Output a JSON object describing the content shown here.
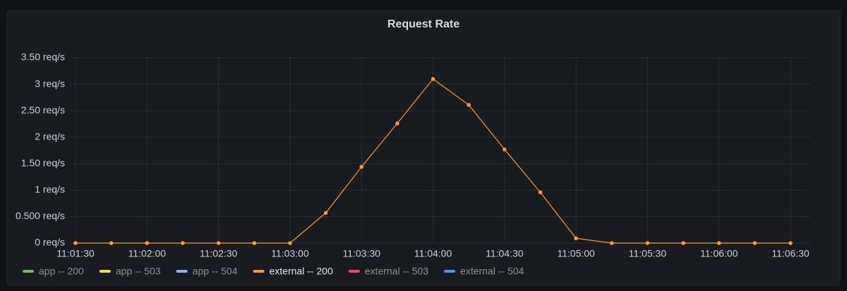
{
  "chart_data": {
    "type": "line",
    "title": "Request Rate",
    "x": [
      "11:01:30",
      "11:01:45",
      "11:02:00",
      "11:02:15",
      "11:02:30",
      "11:02:45",
      "11:03:00",
      "11:03:15",
      "11:03:30",
      "11:03:45",
      "11:04:00",
      "11:04:15",
      "11:04:30",
      "11:04:45",
      "11:05:00",
      "11:05:15",
      "11:05:30",
      "11:05:45",
      "11:06:00",
      "11:06:15",
      "11:06:30"
    ],
    "series": [
      {
        "name": "app -- 200",
        "color": "#73bf69"
      },
      {
        "name": "app -- 503",
        "color": "#fade2a"
      },
      {
        "name": "app -- 504",
        "color": "#8ab8ff"
      },
      {
        "name": "external -- 200",
        "color": "#ff9830",
        "values": [
          0,
          0,
          0,
          0,
          0,
          0,
          0,
          0.57,
          1.44,
          2.26,
          3.1,
          2.61,
          1.77,
          0.96,
          0.09,
          0,
          0,
          0,
          0,
          0,
          0
        ]
      },
      {
        "name": "external -- 503",
        "color": "#f2495c"
      },
      {
        "name": "external -- 504",
        "color": "#5794f2"
      }
    ],
    "xlim": [
      "11:01:30",
      "11:06:30"
    ],
    "xticks": [
      "11:01:30",
      "11:02:00",
      "11:02:30",
      "11:03:00",
      "11:03:30",
      "11:04:00",
      "11:04:30",
      "11:05:00",
      "11:05:30",
      "11:06:00",
      "11:06:30"
    ],
    "ylim": [
      0,
      3.5
    ],
    "yticks": [
      {
        "value": 0,
        "label": "0 req/s"
      },
      {
        "value": 0.5,
        "label": "0.500 req/s"
      },
      {
        "value": 1,
        "label": "1 req/s"
      },
      {
        "value": 1.5,
        "label": "1.50 req/s"
      },
      {
        "value": 2,
        "label": "2 req/s"
      },
      {
        "value": 2.5,
        "label": "2.50 req/s"
      },
      {
        "value": 3,
        "label": "3 req/s"
      },
      {
        "value": 3.5,
        "label": "3.50 req/s"
      }
    ],
    "grid": true
  }
}
